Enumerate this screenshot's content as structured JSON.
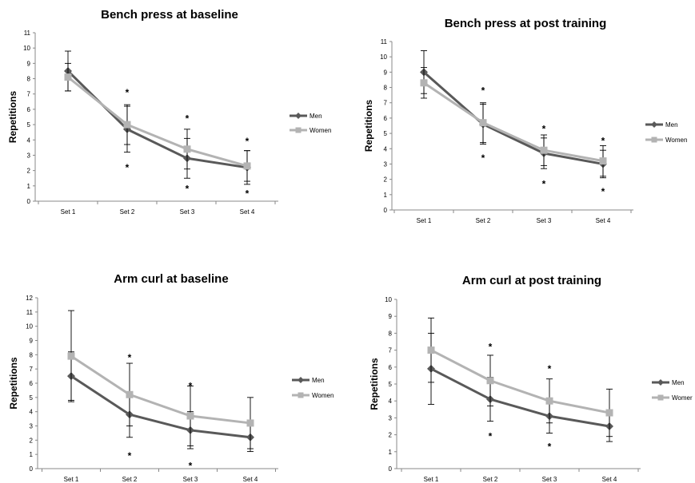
{
  "chart_data": [
    {
      "type": "line",
      "title": "Bench press at baseline",
      "ylabel": "Repetitions",
      "xlabel": "",
      "categories": [
        "Set 1",
        "Set 2",
        "Set 3",
        "Set 4"
      ],
      "ylim": [
        0,
        11
      ],
      "yticks": [
        0,
        1,
        2,
        3,
        4,
        5,
        6,
        7,
        8,
        9,
        10,
        11
      ],
      "legend_position": "right",
      "series": [
        {
          "name": "Men",
          "color": "#595959",
          "marker": "diamond",
          "values": [
            8.5,
            4.7,
            2.8,
            2.2
          ],
          "err": [
            1.3,
            1.5,
            1.3,
            1.1
          ]
        },
        {
          "name": "Women",
          "color": "#b3b3b3",
          "marker": "square",
          "values": [
            8.1,
            5.0,
            3.4,
            2.3
          ],
          "err": [
            0.9,
            1.3,
            1.3,
            1.0
          ]
        }
      ],
      "annotations": [
        {
          "cat": 1,
          "y": 7.1,
          "text": "*"
        },
        {
          "cat": 1,
          "y": 2.2,
          "text": "*"
        },
        {
          "cat": 2,
          "y": 5.4,
          "text": "*"
        },
        {
          "cat": 2,
          "y": 0.8,
          "text": "*"
        },
        {
          "cat": 3,
          "y": 3.9,
          "text": "*"
        },
        {
          "cat": 3,
          "y": 0.5,
          "text": "*"
        }
      ]
    },
    {
      "type": "line",
      "title": "Bench press at post training",
      "ylabel": "Repetitions",
      "xlabel": "",
      "categories": [
        "Set 1",
        "Set 2",
        "Set 3",
        "Set 4"
      ],
      "ylim": [
        0,
        11
      ],
      "yticks": [
        0,
        1,
        2,
        3,
        4,
        5,
        6,
        7,
        8,
        9,
        10,
        11
      ],
      "legend_position": "right",
      "series": [
        {
          "name": "Men",
          "color": "#595959",
          "marker": "diamond",
          "values": [
            9.0,
            5.6,
            3.7,
            3.0
          ],
          "err": [
            1.4,
            1.3,
            1.0,
            0.9
          ]
        },
        {
          "name": "Women",
          "color": "#b3b3b3",
          "marker": "square",
          "values": [
            8.3,
            5.7,
            3.9,
            3.2
          ],
          "err": [
            1.0,
            1.3,
            1.0,
            1.0
          ]
        }
      ],
      "annotations": [
        {
          "cat": 1,
          "y": 7.8,
          "text": "*"
        },
        {
          "cat": 1,
          "y": 3.4,
          "text": "*"
        },
        {
          "cat": 2,
          "y": 5.3,
          "text": "*"
        },
        {
          "cat": 2,
          "y": 1.7,
          "text": "*"
        },
        {
          "cat": 3,
          "y": 4.5,
          "text": "*"
        },
        {
          "cat": 3,
          "y": 1.2,
          "text": "*"
        }
      ]
    },
    {
      "type": "line",
      "title": "Arm curl at baseline",
      "ylabel": "Repetitions",
      "xlabel": "",
      "categories": [
        "Set 1",
        "Set 2",
        "Set 3",
        "Set 4"
      ],
      "ylim": [
        0,
        12
      ],
      "yticks": [
        0,
        1,
        2,
        3,
        4,
        5,
        6,
        7,
        8,
        9,
        10,
        11,
        12
      ],
      "legend_position": "right",
      "series": [
        {
          "name": "Men",
          "color": "#595959",
          "marker": "diamond",
          "values": [
            6.5,
            3.8,
            2.7,
            2.2
          ],
          "err": [
            1.7,
            1.6,
            1.3,
            1.0
          ]
        },
        {
          "name": "Women",
          "color": "#b3b3b3",
          "marker": "square",
          "values": [
            7.9,
            5.2,
            3.7,
            3.2
          ],
          "err": [
            3.2,
            2.2,
            2.1,
            1.8
          ]
        }
      ],
      "annotations": [
        {
          "cat": 1,
          "y": 7.8,
          "text": "*"
        },
        {
          "cat": 1,
          "y": 0.9,
          "text": "*"
        },
        {
          "cat": 2,
          "y": 5.8,
          "text": "*"
        },
        {
          "cat": 2,
          "y": 0.2,
          "text": "*"
        }
      ]
    },
    {
      "type": "line",
      "title": "Arm curl at post training",
      "ylabel": "Repetitions",
      "xlabel": "",
      "categories": [
        "Set 1",
        "Set 2",
        "Set 3",
        "Set 4"
      ],
      "ylim": [
        0,
        10
      ],
      "yticks": [
        0,
        1,
        2,
        3,
        4,
        5,
        6,
        7,
        8,
        9,
        10
      ],
      "legend_position": "right",
      "series": [
        {
          "name": "Men",
          "color": "#595959",
          "marker": "diamond",
          "values": [
            5.9,
            4.1,
            3.1,
            2.5
          ],
          "err": [
            2.1,
            1.3,
            1.0,
            0.9
          ]
        },
        {
          "name": "Women",
          "color": "#b3b3b3",
          "marker": "square",
          "values": [
            7.0,
            5.2,
            4.0,
            3.3
          ],
          "err": [
            1.9,
            1.5,
            1.3,
            1.4
          ]
        }
      ],
      "annotations": [
        {
          "cat": 1,
          "y": 7.2,
          "text": "*"
        },
        {
          "cat": 1,
          "y": 1.9,
          "text": "*"
        },
        {
          "cat": 2,
          "y": 5.9,
          "text": "*"
        },
        {
          "cat": 2,
          "y": 1.3,
          "text": "*"
        }
      ]
    }
  ],
  "legend_labels": [
    {
      "men": "Men",
      "women": "Women"
    },
    {
      "men": "Men",
      "women": "Women"
    },
    {
      "men": "Men",
      "women": "Women"
    },
    {
      "men": "Men",
      "women": "Womer"
    }
  ]
}
